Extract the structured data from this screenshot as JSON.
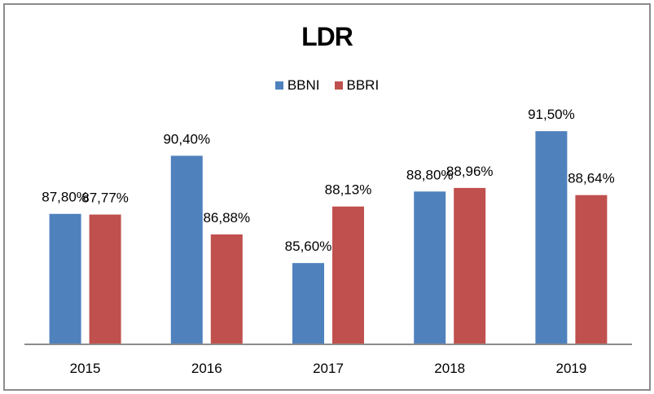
{
  "chart_data": {
    "type": "bar",
    "title": "LDR",
    "xlabel": "",
    "ylabel": "",
    "categories": [
      "2015",
      "2016",
      "2017",
      "2018",
      "2019"
    ],
    "series": [
      {
        "name": "BBNI",
        "color": "#4f81bd",
        "values": [
          87.8,
          90.4,
          85.6,
          88.8,
          91.5
        ],
        "labels": [
          "87,80%",
          "90,40%",
          "85,60%",
          "88,80%",
          "91,50%"
        ]
      },
      {
        "name": "BBRI",
        "color": "#c0504d",
        "values": [
          87.77,
          86.88,
          88.13,
          88.96,
          88.64
        ],
        "labels": [
          "87,77%",
          "86,88%",
          "88,13%",
          "88,96%",
          "88,64%"
        ]
      }
    ],
    "ylim": [
      82,
      94
    ],
    "grid": false,
    "legend_position": "top"
  }
}
